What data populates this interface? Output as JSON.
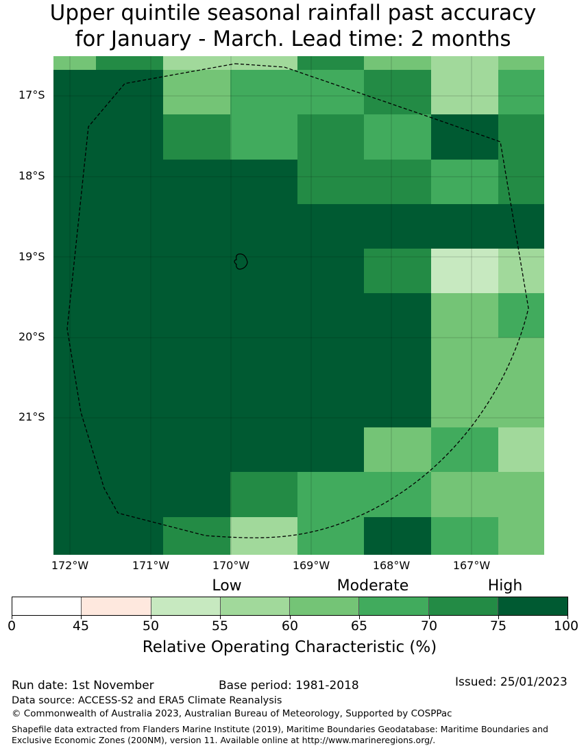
{
  "title": {
    "line1": "Upper quintile seasonal rainfall past accuracy",
    "line2": "for January - March. Lead time: 2 months"
  },
  "map": {
    "lat_labels": [
      "17°S",
      "18°S",
      "19°S",
      "20°S",
      "21°S"
    ],
    "lon_labels": [
      "172°W",
      "171°W",
      "170°W",
      "169°W",
      "168°W",
      "167°W"
    ],
    "grid_values": [
      [
        62,
        72,
        58,
        58,
        72,
        62,
        58,
        62
      ],
      [
        80,
        80,
        62,
        67,
        67,
        72,
        58,
        67
      ],
      [
        80,
        80,
        72,
        67,
        72,
        67,
        80,
        72
      ],
      [
        80,
        80,
        80,
        80,
        72,
        72,
        67,
        72
      ],
      [
        80,
        80,
        80,
        80,
        80,
        80,
        80,
        80
      ],
      [
        80,
        80,
        80,
        80,
        80,
        72,
        52,
        58
      ],
      [
        80,
        80,
        80,
        80,
        80,
        80,
        62,
        67
      ],
      [
        80,
        80,
        80,
        80,
        80,
        80,
        62,
        62
      ],
      [
        80,
        80,
        80,
        80,
        80,
        80,
        62,
        62
      ],
      [
        80,
        80,
        80,
        80,
        80,
        62,
        67,
        58
      ],
      [
        80,
        80,
        80,
        72,
        67,
        67,
        62,
        62
      ],
      [
        80,
        80,
        72,
        58,
        67,
        80,
        67,
        62
      ]
    ],
    "cell_color_scale": [
      "#ffffff",
      "#fee8de",
      "#c7e9c0",
      "#a1d99b",
      "#74c476",
      "#41ab5d",
      "#238b45",
      "#005a32"
    ],
    "boundary_style": "dashed black line (EEZ)",
    "island": "outlined island near 19°S, 170°W"
  },
  "legend": {
    "categories": [
      "Low",
      "Moderate",
      "High"
    ],
    "ticks": [
      "0",
      "45",
      "50",
      "55",
      "60",
      "65",
      "70",
      "75",
      "100"
    ],
    "colors": [
      "#ffffff",
      "#fee8de",
      "#c7e9c0",
      "#a1d99b",
      "#74c476",
      "#41ab5d",
      "#238b45",
      "#005a32"
    ],
    "title": "Relative Operating Characteristic (%)"
  },
  "footer": {
    "run_date": "Run date: 1st November",
    "base_period": "Base period: 1981-2018",
    "issued": "Issued: 25/01/2023",
    "data_source": "Data source: ACCESS-S2 and ERA5 Climate Reanalysis",
    "copyright": "© Commonwealth of Australia 2023, Australian Bureau of Meteorology, Supported by COSPPac",
    "shapefile": "Shapefile data extracted from Flanders Marine Institute (2019), Maritime Boundaries Geodatabase: Maritime Boundaries and Exclusive Economic Zones (200NM), version 11. Available online at http://www.marineregions.org/."
  }
}
